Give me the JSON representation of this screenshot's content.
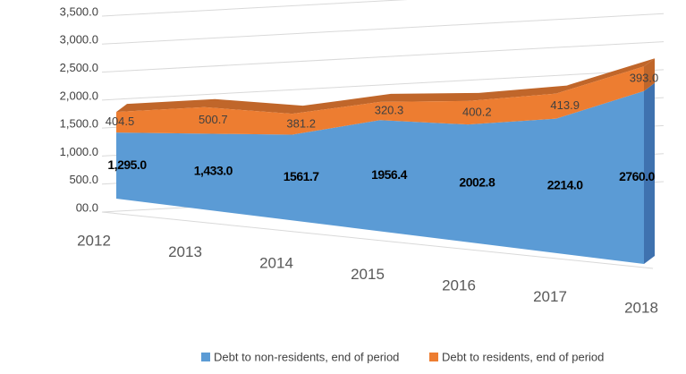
{
  "chart_data": {
    "type": "area3d",
    "stacked": true,
    "categories": [
      "2012",
      "2013",
      "2014",
      "2015",
      "2016",
      "2017",
      "2018"
    ],
    "series": [
      {
        "name": "Debt to non-residents, end of period",
        "color": "#5b9bd5",
        "values": [
          1295.0,
          1433.0,
          1561.7,
          1956.4,
          2002.8,
          2214.0,
          2760.0
        ],
        "value_labels": [
          "1,295.0",
          "1,433.0",
          "1561.7",
          "1956.4",
          "2002.8",
          "2214.0",
          "2760.0"
        ]
      },
      {
        "name": "Debt to residents, end of period",
        "color": "#ed7d31",
        "values": [
          404.5,
          500.7,
          381.2,
          320.3,
          400.2,
          413.9,
          393.0
        ],
        "value_labels": [
          "404.5",
          "500.7",
          "381.2",
          "320.3",
          "400.2",
          "413.9",
          "393.0"
        ]
      }
    ],
    "ylim": [
      0,
      3500
    ],
    "yticks": [
      {
        "value": 0,
        "label": "00.0"
      },
      {
        "value": 500,
        "label": "500.0"
      },
      {
        "value": 1000,
        "label": "1,000.0"
      },
      {
        "value": 1500,
        "label": "1,500.0"
      },
      {
        "value": 2000,
        "label": "2,000.0"
      },
      {
        "value": 2500,
        "label": "2,500.0"
      },
      {
        "value": 3000,
        "label": "3,000.0"
      },
      {
        "value": 3500,
        "label": "3,500.0"
      }
    ],
    "grid": true,
    "legend": "bottom"
  }
}
